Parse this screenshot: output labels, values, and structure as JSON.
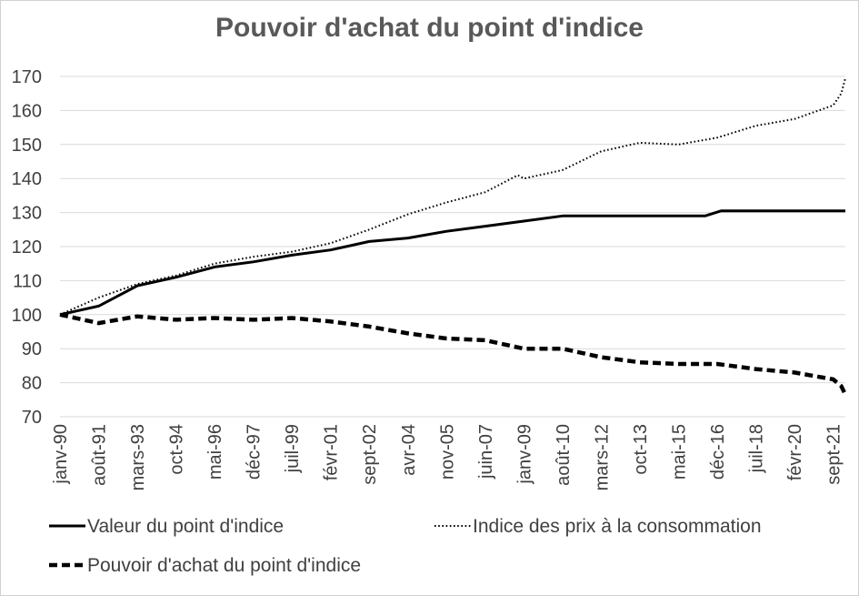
{
  "chart_data": {
    "type": "line",
    "title": "Pouvoir d'achat du point d'indice",
    "ylim": [
      70,
      170
    ],
    "yticks": [
      70,
      80,
      90,
      100,
      110,
      120,
      130,
      140,
      150,
      160,
      170
    ],
    "grid": "horizontal",
    "legend_position": "bottom",
    "x_start": "janv-90",
    "x_end": "mars-22",
    "x_tick_labels": [
      "janv-90",
      "août-91",
      "mars-93",
      "oct-94",
      "mai-96",
      "déc-97",
      "juil-99",
      "févr-01",
      "sept-02",
      "avr-04",
      "nov-05",
      "juin-07",
      "janv-09",
      "août-10",
      "mars-12",
      "oct-13",
      "mai-15",
      "déc-16",
      "juil-18",
      "févr-20",
      "sept-21"
    ],
    "series": [
      {
        "name": "Valeur du point d'indice",
        "style": "solid",
        "color": "#000000",
        "points": [
          [
            "janv-90",
            100
          ],
          [
            "août-91",
            102.5
          ],
          [
            "mars-93",
            108.5
          ],
          [
            "oct-94",
            111
          ],
          [
            "mai-96",
            114
          ],
          [
            "déc-97",
            115.5
          ],
          [
            "juil-99",
            117.5
          ],
          [
            "févr-01",
            119
          ],
          [
            "sept-02",
            121.5
          ],
          [
            "avr-04",
            122.5
          ],
          [
            "nov-05",
            124.5
          ],
          [
            "juin-07",
            126
          ],
          [
            "janv-09",
            127.5
          ],
          [
            "août-10",
            129
          ],
          [
            "mars-12",
            129
          ],
          [
            "oct-13",
            129
          ],
          [
            "mai-15",
            129
          ],
          [
            "juin-16",
            129
          ],
          [
            "févr-17",
            130.5
          ],
          [
            "juil-18",
            130.5
          ],
          [
            "févr-20",
            130.5
          ],
          [
            "sept-21",
            130.5
          ],
          [
            "mars-22",
            130.5
          ]
        ]
      },
      {
        "name": "Indice des prix à la consommation",
        "style": "dotted",
        "color": "#000000",
        "points": [
          [
            "janv-90",
            100
          ],
          [
            "août-91",
            105
          ],
          [
            "mars-93",
            109
          ],
          [
            "oct-94",
            111.5
          ],
          [
            "mai-96",
            115
          ],
          [
            "déc-97",
            117
          ],
          [
            "juil-99",
            118.5
          ],
          [
            "févr-01",
            121
          ],
          [
            "sept-02",
            125
          ],
          [
            "avr-04",
            129.5
          ],
          [
            "nov-05",
            133
          ],
          [
            "juin-07",
            136
          ],
          [
            "oct-08",
            141
          ],
          [
            "janv-09",
            140
          ],
          [
            "août-10",
            142.5
          ],
          [
            "mars-12",
            148
          ],
          [
            "oct-13",
            150.5
          ],
          [
            "mai-15",
            150
          ],
          [
            "déc-16",
            152
          ],
          [
            "juil-18",
            155.5
          ],
          [
            "févr-20",
            157.5
          ],
          [
            "sept-21",
            161.5
          ],
          [
            "janv-22",
            165
          ],
          [
            "mars-22",
            169.5
          ]
        ]
      },
      {
        "name": "Pouvoir d'achat du point d'indice",
        "style": "dashed",
        "color": "#000000",
        "points": [
          [
            "janv-90",
            100
          ],
          [
            "août-91",
            97.5
          ],
          [
            "mars-93",
            99.5
          ],
          [
            "oct-94",
            98.5
          ],
          [
            "mai-96",
            99
          ],
          [
            "déc-97",
            98.5
          ],
          [
            "juil-99",
            99
          ],
          [
            "févr-01",
            98
          ],
          [
            "sept-02",
            96.5
          ],
          [
            "avr-04",
            94.5
          ],
          [
            "nov-05",
            93
          ],
          [
            "juin-07",
            92.5
          ],
          [
            "janv-09",
            90
          ],
          [
            "août-10",
            90
          ],
          [
            "mars-12",
            87.5
          ],
          [
            "oct-13",
            86
          ],
          [
            "mai-15",
            85.5
          ],
          [
            "déc-16",
            85.5
          ],
          [
            "juil-18",
            84
          ],
          [
            "févr-20",
            83
          ],
          [
            "sept-21",
            81
          ],
          [
            "janv-22",
            79
          ],
          [
            "mars-22",
            76.5
          ]
        ]
      }
    ]
  }
}
